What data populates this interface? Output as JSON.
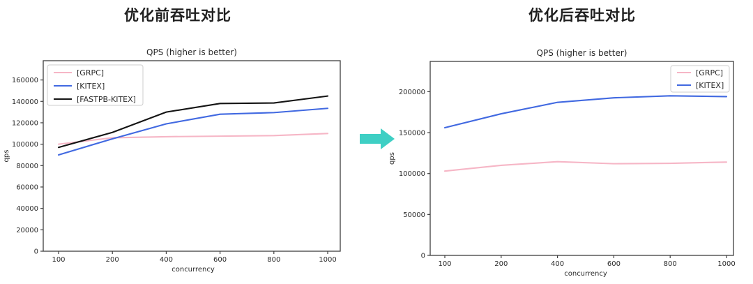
{
  "page": {
    "background": "#ffffff"
  },
  "arrow": {
    "color": "#3ECFC4"
  },
  "style": {
    "axis_color": "#3f3f3f",
    "text_color": "#2b2b2b",
    "legend_border": "#cccccc",
    "legend_bg": "#ffffff"
  },
  "chart_data": [
    {
      "type": "line",
      "figure_title": "优化前吞吐对比",
      "title": "QPS (higher is better)",
      "xlabel": "concurrency",
      "ylabel": "qps",
      "categories": [
        100,
        200,
        400,
        600,
        800,
        1000
      ],
      "xtick_labels": [
        "100",
        "200",
        "400",
        "600",
        "800",
        "1000"
      ],
      "series": [
        {
          "name": "[GRPC]",
          "color": "#F6B6C6",
          "values": [
            100000,
            106000,
            107000,
            107500,
            108000,
            110000
          ]
        },
        {
          "name": "[KITEX]",
          "color": "#4169E1",
          "values": [
            90000,
            105000,
            119000,
            128000,
            129500,
            133500
          ]
        },
        {
          "name": "[FASTPB-KITEX]",
          "color": "#141414",
          "values": [
            97000,
            111000,
            130000,
            138000,
            138500,
            145000
          ]
        }
      ],
      "ylim": [
        0,
        178000
      ],
      "yticks": [
        0,
        20000,
        40000,
        60000,
        80000,
        100000,
        120000,
        140000,
        160000
      ],
      "legend_position": "upper-left",
      "grid": false
    },
    {
      "type": "line",
      "figure_title": "优化后吞吐对比",
      "title": "QPS (higher is better)",
      "xlabel": "concurrency",
      "ylabel": "qps",
      "categories": [
        100,
        200,
        400,
        600,
        800,
        1000
      ],
      "xtick_labels": [
        "100",
        "200",
        "400",
        "600",
        "800",
        "1000"
      ],
      "series": [
        {
          "name": "[GRPC]",
          "color": "#F6B6C6",
          "values": [
            103000,
            110000,
            114500,
            112000,
            112500,
            114000
          ]
        },
        {
          "name": "[KITEX]",
          "color": "#4169E1",
          "values": [
            156000,
            173000,
            187000,
            192500,
            195000,
            194000
          ]
        }
      ],
      "ylim": [
        0,
        237000
      ],
      "yticks": [
        0,
        50000,
        100000,
        150000,
        200000
      ],
      "legend_position": "upper-right",
      "grid": false
    }
  ]
}
